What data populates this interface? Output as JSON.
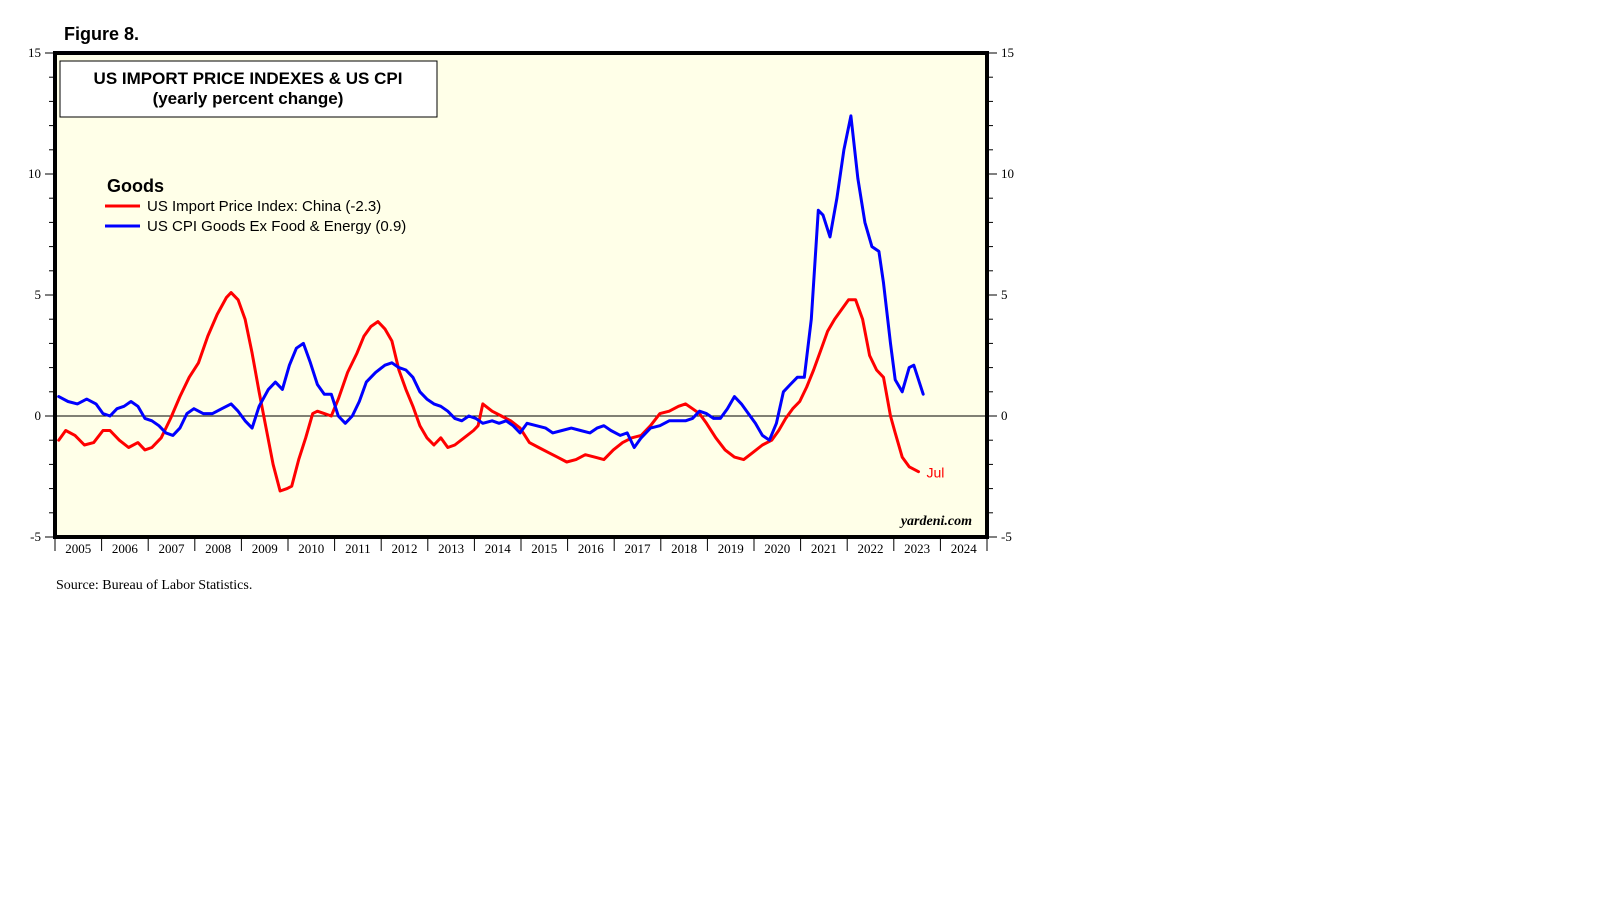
{
  "figure_label": "Figure 8.",
  "source_note": "Source: Bureau of Labor Statistics.",
  "watermark": "yardeni.com",
  "colors": {
    "background": "#ffffe8",
    "red_series": "#ff0000",
    "blue_series": "#0000ff"
  },
  "chart_data": {
    "type": "line",
    "title": "US IMPORT PRICE INDEXES & US CPI",
    "subtitle": "(yearly percent change)",
    "legend_heading": "Goods",
    "legend_position": "top-left",
    "ylim": [
      -5,
      15
    ],
    "y_ticks": [
      -5,
      0,
      5,
      10,
      15
    ],
    "x_range": [
      2004.92,
      2024.92
    ],
    "year_labels": [
      "2005",
      "2006",
      "2007",
      "2008",
      "2009",
      "2010",
      "2011",
      "2012",
      "2013",
      "2014",
      "2015",
      "2016",
      "2017",
      "2018",
      "2019",
      "2020",
      "2021",
      "2022",
      "2023",
      "2024"
    ],
    "end_label": "Jul",
    "series": [
      {
        "name": "US Import Price Index: China (-2.3)",
        "color": "#ff0000",
        "points": [
          [
            2005.0,
            -1.0
          ],
          [
            2005.15,
            -0.6
          ],
          [
            2005.35,
            -0.8
          ],
          [
            2005.55,
            -1.2
          ],
          [
            2005.75,
            -1.1
          ],
          [
            2005.95,
            -0.6
          ],
          [
            2006.1,
            -0.6
          ],
          [
            2006.3,
            -1.0
          ],
          [
            2006.5,
            -1.3
          ],
          [
            2006.7,
            -1.1
          ],
          [
            2006.85,
            -1.4
          ],
          [
            2007.0,
            -1.3
          ],
          [
            2007.2,
            -0.9
          ],
          [
            2007.4,
            -0.1
          ],
          [
            2007.6,
            0.8
          ],
          [
            2007.8,
            1.6
          ],
          [
            2008.0,
            2.2
          ],
          [
            2008.2,
            3.3
          ],
          [
            2008.4,
            4.2
          ],
          [
            2008.6,
            4.9
          ],
          [
            2008.7,
            5.1
          ],
          [
            2008.85,
            4.8
          ],
          [
            2009.0,
            4.0
          ],
          [
            2009.15,
            2.6
          ],
          [
            2009.3,
            1.0
          ],
          [
            2009.45,
            -0.5
          ],
          [
            2009.6,
            -2.0
          ],
          [
            2009.75,
            -3.1
          ],
          [
            2009.9,
            -3.0
          ],
          [
            2010.0,
            -2.9
          ],
          [
            2010.15,
            -1.8
          ],
          [
            2010.3,
            -0.9
          ],
          [
            2010.45,
            0.1
          ],
          [
            2010.55,
            0.2
          ],
          [
            2010.7,
            0.1
          ],
          [
            2010.85,
            0.0
          ],
          [
            2011.0,
            0.7
          ],
          [
            2011.2,
            1.8
          ],
          [
            2011.4,
            2.6
          ],
          [
            2011.55,
            3.3
          ],
          [
            2011.7,
            3.7
          ],
          [
            2011.85,
            3.9
          ],
          [
            2012.0,
            3.6
          ],
          [
            2012.15,
            3.1
          ],
          [
            2012.3,
            1.9
          ],
          [
            2012.45,
            1.1
          ],
          [
            2012.6,
            0.4
          ],
          [
            2012.75,
            -0.4
          ],
          [
            2012.9,
            -0.9
          ],
          [
            2013.05,
            -1.2
          ],
          [
            2013.2,
            -0.9
          ],
          [
            2013.35,
            -1.3
          ],
          [
            2013.5,
            -1.2
          ],
          [
            2013.7,
            -0.9
          ],
          [
            2013.9,
            -0.6
          ],
          [
            2014.0,
            -0.4
          ],
          [
            2014.1,
            0.5
          ],
          [
            2014.3,
            0.2
          ],
          [
            2014.5,
            0.0
          ],
          [
            2014.7,
            -0.2
          ],
          [
            2014.9,
            -0.5
          ],
          [
            2015.1,
            -1.1
          ],
          [
            2015.3,
            -1.3
          ],
          [
            2015.5,
            -1.5
          ],
          [
            2015.7,
            -1.7
          ],
          [
            2015.9,
            -1.9
          ],
          [
            2016.1,
            -1.8
          ],
          [
            2016.3,
            -1.6
          ],
          [
            2016.5,
            -1.7
          ],
          [
            2016.7,
            -1.8
          ],
          [
            2016.9,
            -1.4
          ],
          [
            2017.1,
            -1.1
          ],
          [
            2017.3,
            -0.9
          ],
          [
            2017.5,
            -0.8
          ],
          [
            2017.7,
            -0.4
          ],
          [
            2017.9,
            0.1
          ],
          [
            2018.1,
            0.2
          ],
          [
            2018.3,
            0.4
          ],
          [
            2018.45,
            0.5
          ],
          [
            2018.6,
            0.3
          ],
          [
            2018.75,
            0.1
          ],
          [
            2018.9,
            -0.3
          ],
          [
            2019.1,
            -0.9
          ],
          [
            2019.3,
            -1.4
          ],
          [
            2019.5,
            -1.7
          ],
          [
            2019.7,
            -1.8
          ],
          [
            2019.9,
            -1.5
          ],
          [
            2020.1,
            -1.2
          ],
          [
            2020.3,
            -1.0
          ],
          [
            2020.45,
            -0.6
          ],
          [
            2020.6,
            -0.1
          ],
          [
            2020.75,
            0.3
          ],
          [
            2020.9,
            0.6
          ],
          [
            2021.05,
            1.2
          ],
          [
            2021.2,
            1.9
          ],
          [
            2021.35,
            2.7
          ],
          [
            2021.5,
            3.5
          ],
          [
            2021.65,
            4.0
          ],
          [
            2021.8,
            4.4
          ],
          [
            2021.95,
            4.8
          ],
          [
            2022.1,
            4.8
          ],
          [
            2022.25,
            4.0
          ],
          [
            2022.4,
            2.5
          ],
          [
            2022.55,
            1.9
          ],
          [
            2022.7,
            1.6
          ],
          [
            2022.85,
            0.0
          ],
          [
            2022.95,
            -0.7
          ],
          [
            2023.1,
            -1.7
          ],
          [
            2023.25,
            -2.1
          ],
          [
            2023.45,
            -2.3
          ]
        ]
      },
      {
        "name": "US CPI Goods Ex Food & Energy (0.9)",
        "color": "#0000ff",
        "points": [
          [
            2005.0,
            0.8
          ],
          [
            2005.2,
            0.6
          ],
          [
            2005.4,
            0.5
          ],
          [
            2005.6,
            0.7
          ],
          [
            2005.8,
            0.5
          ],
          [
            2005.95,
            0.1
          ],
          [
            2006.1,
            0.0
          ],
          [
            2006.25,
            0.3
          ],
          [
            2006.4,
            0.4
          ],
          [
            2006.55,
            0.6
          ],
          [
            2006.7,
            0.4
          ],
          [
            2006.85,
            -0.1
          ],
          [
            2007.0,
            -0.2
          ],
          [
            2007.15,
            -0.4
          ],
          [
            2007.3,
            -0.7
          ],
          [
            2007.45,
            -0.8
          ],
          [
            2007.6,
            -0.5
          ],
          [
            2007.75,
            0.1
          ],
          [
            2007.9,
            0.3
          ],
          [
            2008.1,
            0.1
          ],
          [
            2008.3,
            0.1
          ],
          [
            2008.5,
            0.3
          ],
          [
            2008.7,
            0.5
          ],
          [
            2008.85,
            0.2
          ],
          [
            2009.0,
            -0.2
          ],
          [
            2009.15,
            -0.5
          ],
          [
            2009.3,
            0.4
          ],
          [
            2009.5,
            1.1
          ],
          [
            2009.65,
            1.4
          ],
          [
            2009.8,
            1.1
          ],
          [
            2009.95,
            2.1
          ],
          [
            2010.1,
            2.8
          ],
          [
            2010.25,
            3.0
          ],
          [
            2010.4,
            2.2
          ],
          [
            2010.55,
            1.3
          ],
          [
            2010.7,
            0.9
          ],
          [
            2010.85,
            0.9
          ],
          [
            2011.0,
            0.0
          ],
          [
            2011.15,
            -0.3
          ],
          [
            2011.3,
            0.0
          ],
          [
            2011.45,
            0.6
          ],
          [
            2011.6,
            1.4
          ],
          [
            2011.8,
            1.8
          ],
          [
            2012.0,
            2.1
          ],
          [
            2012.15,
            2.2
          ],
          [
            2012.3,
            2.0
          ],
          [
            2012.45,
            1.9
          ],
          [
            2012.6,
            1.6
          ],
          [
            2012.75,
            1.0
          ],
          [
            2012.9,
            0.7
          ],
          [
            2013.05,
            0.5
          ],
          [
            2013.2,
            0.4
          ],
          [
            2013.35,
            0.2
          ],
          [
            2013.5,
            -0.1
          ],
          [
            2013.65,
            -0.2
          ],
          [
            2013.8,
            0.0
          ],
          [
            2013.95,
            -0.1
          ],
          [
            2014.1,
            -0.3
          ],
          [
            2014.3,
            -0.2
          ],
          [
            2014.45,
            -0.3
          ],
          [
            2014.6,
            -0.2
          ],
          [
            2014.75,
            -0.4
          ],
          [
            2014.9,
            -0.7
          ],
          [
            2015.05,
            -0.3
          ],
          [
            2015.25,
            -0.4
          ],
          [
            2015.45,
            -0.5
          ],
          [
            2015.6,
            -0.7
          ],
          [
            2015.8,
            -0.6
          ],
          [
            2016.0,
            -0.5
          ],
          [
            2016.2,
            -0.6
          ],
          [
            2016.4,
            -0.7
          ],
          [
            2016.55,
            -0.5
          ],
          [
            2016.7,
            -0.4
          ],
          [
            2016.85,
            -0.6
          ],
          [
            2017.05,
            -0.8
          ],
          [
            2017.2,
            -0.7
          ],
          [
            2017.35,
            -1.3
          ],
          [
            2017.5,
            -0.9
          ],
          [
            2017.7,
            -0.5
          ],
          [
            2017.9,
            -0.4
          ],
          [
            2018.1,
            -0.2
          ],
          [
            2018.3,
            -0.2
          ],
          [
            2018.45,
            -0.2
          ],
          [
            2018.6,
            -0.1
          ],
          [
            2018.75,
            0.2
          ],
          [
            2018.9,
            0.1
          ],
          [
            2019.05,
            -0.1
          ],
          [
            2019.2,
            -0.1
          ],
          [
            2019.35,
            0.3
          ],
          [
            2019.5,
            0.8
          ],
          [
            2019.65,
            0.5
          ],
          [
            2019.8,
            0.1
          ],
          [
            2019.95,
            -0.3
          ],
          [
            2020.1,
            -0.8
          ],
          [
            2020.25,
            -1.0
          ],
          [
            2020.4,
            -0.3
          ],
          [
            2020.55,
            1.0
          ],
          [
            2020.7,
            1.3
          ],
          [
            2020.85,
            1.6
          ],
          [
            2021.0,
            1.6
          ],
          [
            2021.15,
            4.0
          ],
          [
            2021.3,
            8.5
          ],
          [
            2021.4,
            8.3
          ],
          [
            2021.55,
            7.4
          ],
          [
            2021.7,
            9.0
          ],
          [
            2021.85,
            11.0
          ],
          [
            2022.0,
            12.4
          ],
          [
            2022.15,
            9.8
          ],
          [
            2022.3,
            8.0
          ],
          [
            2022.45,
            7.0
          ],
          [
            2022.6,
            6.8
          ],
          [
            2022.7,
            5.5
          ],
          [
            2022.85,
            3.0
          ],
          [
            2022.95,
            1.5
          ],
          [
            2023.1,
            1.0
          ],
          [
            2023.25,
            2.0
          ],
          [
            2023.35,
            2.1
          ],
          [
            2023.45,
            1.5
          ],
          [
            2023.55,
            0.9
          ]
        ]
      }
    ]
  }
}
